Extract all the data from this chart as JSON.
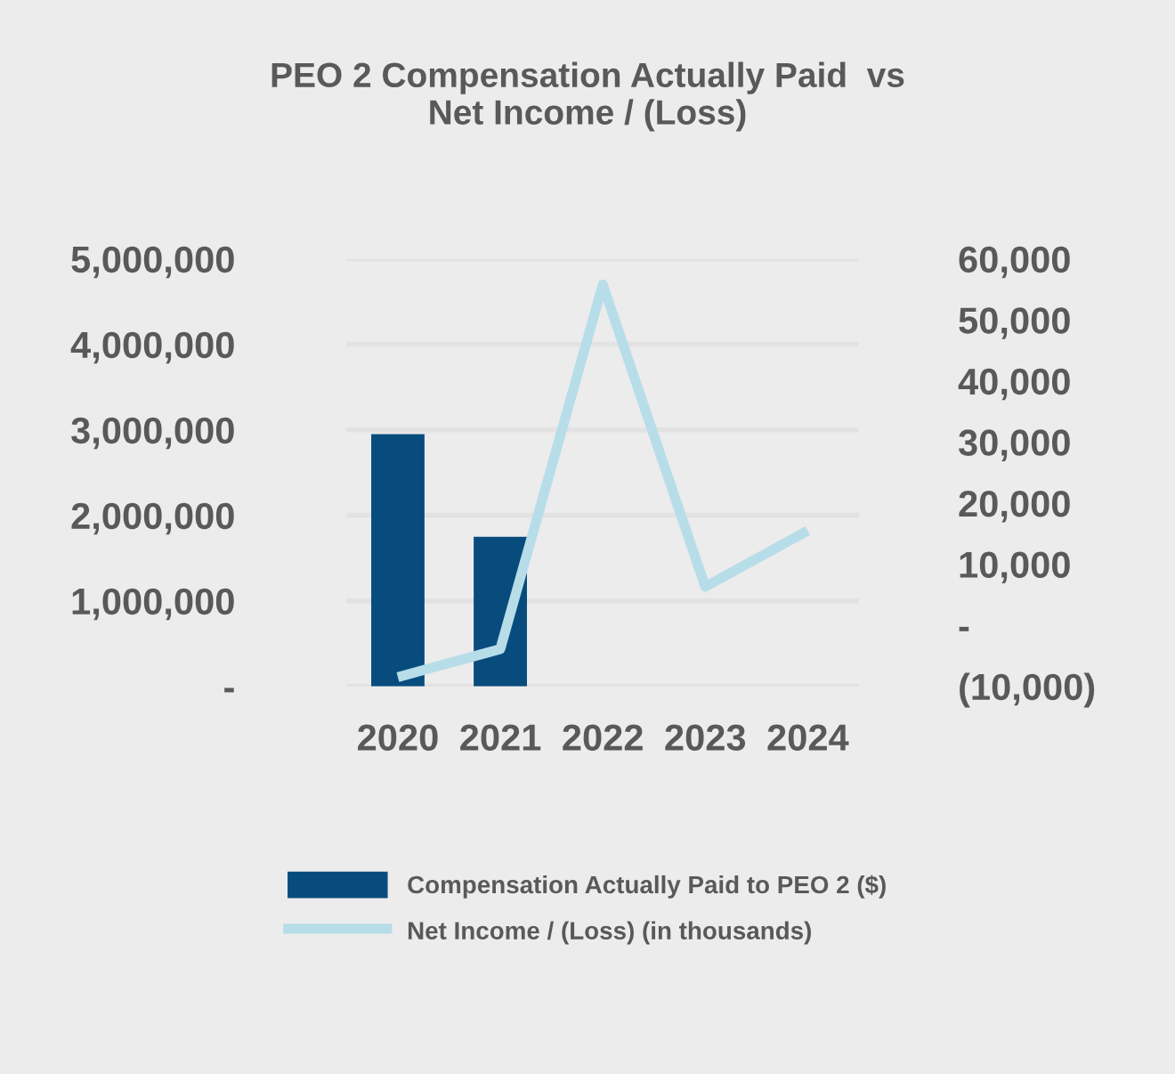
{
  "chart_data": {
    "type": "bar",
    "title": "PEO 2 Compensation Actually Paid  vs\nNet Income / (Loss)",
    "categories": [
      "2020",
      "2021",
      "2022",
      "2023",
      "2024"
    ],
    "series": [
      {
        "name": "Compensation Actually Paid to PEO 2 ($)",
        "color": "#084c7e",
        "values": [
          2950000,
          1750000,
          null,
          null,
          null
        ]
      },
      {
        "name": "Net Income / (Loss) (in thousands)",
        "type": "line",
        "axis": "y2",
        "color": "#b7dde9",
        "values": [
          -8500,
          -3900,
          55800,
          6300,
          15500
        ]
      }
    ],
    "ylim": [
      0,
      5000000
    ],
    "yticks": [
      {
        "value": 0,
        "label": "-"
      },
      {
        "value": 1000000,
        "label": "1,000,000"
      },
      {
        "value": 2000000,
        "label": "2,000,000"
      },
      {
        "value": 3000000,
        "label": "3,000,000"
      },
      {
        "value": 4000000,
        "label": "4,000,000"
      },
      {
        "value": 5000000,
        "label": "5,000,000"
      }
    ],
    "y2lim": [
      -10000,
      60000
    ],
    "y2ticks": [
      {
        "value": -10000,
        "label": "(10,000)"
      },
      {
        "value": 0,
        "label": "-"
      },
      {
        "value": 10000,
        "label": "10,000"
      },
      {
        "value": 20000,
        "label": "20,000"
      },
      {
        "value": 30000,
        "label": "30,000"
      },
      {
        "value": 40000,
        "label": "40,000"
      },
      {
        "value": 50000,
        "label": "50,000"
      },
      {
        "value": 60000,
        "label": "60,000"
      }
    ],
    "grid": "y",
    "legend": "bottom"
  }
}
